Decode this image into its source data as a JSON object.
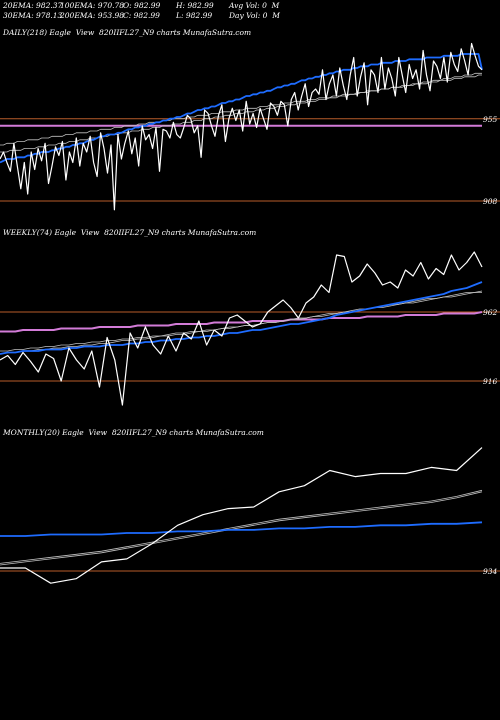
{
  "header": {
    "row1": [
      "20EMA: 982.37",
      "100EMA: 970.78",
      "O: 982.99",
      "H: 982.99",
      "Avg Vol: 0  M"
    ],
    "row2": [
      "30EMA: 978.13",
      "200EMA: 953.98",
      "C: 982.99",
      "L: 982.99",
      "Day Vol: 0  M"
    ]
  },
  "colors": {
    "background": "#000000",
    "price": "#ffffff",
    "ema_fast": "#1e6cff",
    "ema_slow": "#c0c0c0",
    "support": "#d27bd7",
    "level": "#b85c2a"
  },
  "chart_data": [
    {
      "type": "line",
      "title": "DAILY(218) Eagle  View  820IIFL27_N9 charts MunafaSutra.com",
      "yticks": [
        {
          "label": "955",
          "value": 955
        },
        {
          "label": "908",
          "value": 908
        }
      ],
      "ylim": [
        900,
        1000
      ],
      "price": [
        932,
        936,
        930,
        925,
        941,
        928,
        915,
        930,
        912,
        936,
        926,
        938,
        931,
        941,
        918,
        928,
        939,
        934,
        942,
        920,
        936,
        930,
        944,
        928,
        941,
        936,
        945,
        930,
        922,
        947,
        938,
        924,
        940,
        903,
        946,
        932,
        941,
        948,
        935,
        944,
        928,
        951,
        943,
        946,
        938,
        950,
        925,
        949,
        948,
        944,
        953,
        946,
        944,
        950,
        957,
        955,
        947,
        951,
        933,
        960,
        958,
        951,
        945,
        957,
        963,
        942,
        955,
        961,
        954,
        960,
        948,
        965,
        952,
        958,
        950,
        961,
        955,
        949,
        964,
        962,
        957,
        965,
        963,
        951,
        966,
        970,
        960,
        968,
        975,
        962,
        970,
        972,
        969,
        983,
        966,
        975,
        980,
        968,
        984,
        974,
        966,
        980,
        990,
        968,
        979,
        987,
        963,
        983,
        980,
        970,
        990,
        972,
        984,
        978,
        968,
        990,
        980,
        970,
        986,
        978,
        983,
        972,
        994,
        980,
        971,
        988,
        985,
        978,
        990,
        976,
        993,
        986,
        982,
        995,
        988,
        980,
        998,
        991,
        985,
        983
      ],
      "ema_fast": [
        930,
        931,
        932,
        932,
        932,
        933,
        933,
        933,
        934,
        934,
        935,
        935,
        936,
        936,
        936,
        937,
        937,
        938,
        938,
        939,
        939,
        940,
        940,
        941,
        941,
        942,
        943,
        943,
        944,
        945,
        945,
        946,
        946,
        946,
        947,
        947,
        948,
        949,
        949,
        950,
        950,
        951,
        951,
        952,
        952,
        953,
        953,
        954,
        954,
        955,
        955,
        956,
        956,
        957,
        958,
        958,
        959,
        960,
        960,
        961,
        961,
        962,
        962,
        963,
        964,
        964,
        965,
        965,
        966,
        966,
        967,
        968,
        968,
        969,
        969,
        970,
        970,
        971,
        971,
        972,
        973,
        973,
        974,
        974,
        975,
        975,
        976,
        977,
        977,
        978,
        978,
        979,
        979,
        980,
        980,
        981,
        981,
        982,
        982,
        983,
        983,
        983,
        984,
        984,
        985,
        985,
        985,
        986,
        986,
        986,
        987,
        987,
        987,
        987,
        988,
        988,
        988,
        988,
        989,
        989,
        989,
        989,
        989,
        990,
        990,
        990,
        990,
        990,
        991,
        991,
        991,
        991,
        991,
        992,
        992,
        992,
        992,
        992,
        992,
        983
      ],
      "ema_slow": [
        936,
        936,
        936,
        937,
        937,
        937,
        937,
        938,
        938,
        938,
        938,
        939,
        939,
        939,
        940,
        940,
        940,
        941,
        941,
        941,
        942,
        942,
        942,
        943,
        943,
        943,
        944,
        944,
        944,
        945,
        945,
        945,
        946,
        946,
        946,
        947,
        947,
        947,
        948,
        948,
        948,
        949,
        949,
        949,
        950,
        950,
        950,
        951,
        951,
        951,
        952,
        952,
        952,
        953,
        953,
        953,
        954,
        954,
        954,
        955,
        955,
        955,
        956,
        956,
        956,
        957,
        957,
        957,
        958,
        958,
        958,
        959,
        959,
        959,
        960,
        960,
        960,
        961,
        961,
        961,
        962,
        962,
        962,
        963,
        963,
        963,
        964,
        964,
        964,
        965,
        965,
        965,
        966,
        966,
        966,
        967,
        967,
        967,
        968,
        968,
        968,
        969,
        969,
        969,
        970,
        970,
        970,
        971,
        971,
        971,
        972,
        972,
        972,
        973,
        973,
        973,
        974,
        974,
        974,
        975,
        975,
        975,
        976,
        976,
        976,
        977,
        977,
        977,
        978,
        978,
        978,
        979,
        979,
        979,
        980,
        980,
        980,
        981,
        981,
        981
      ],
      "ema_slower": [
        940,
        940,
        941,
        941,
        941,
        942,
        942,
        942,
        943,
        943,
        943,
        943,
        944,
        944,
        944,
        945,
        945,
        945,
        945,
        946,
        946,
        946,
        947,
        947,
        947,
        947,
        948,
        948,
        948,
        949,
        949,
        949,
        949,
        950,
        950,
        950,
        951,
        951,
        951,
        951,
        952,
        952,
        952,
        953,
        953,
        953,
        953,
        954,
        954,
        954,
        955,
        955,
        955,
        955,
        956,
        956,
        956,
        957,
        957,
        957,
        957,
        958,
        958,
        958,
        959,
        959,
        959,
        959,
        960,
        960,
        960,
        961,
        961,
        961,
        961,
        962,
        962,
        962,
        963,
        963,
        963,
        963,
        964,
        964,
        964,
        965,
        965,
        965,
        965,
        966,
        966,
        966,
        967,
        967,
        967,
        967,
        968,
        968,
        968,
        969,
        969,
        969,
        969,
        970,
        970,
        970,
        971,
        971,
        971,
        971,
        972,
        972,
        972,
        973,
        973,
        973,
        973,
        974,
        974,
        974,
        975,
        975,
        975,
        975,
        976,
        976,
        976,
        977,
        977,
        977,
        977,
        978,
        978,
        978,
        979,
        979,
        979,
        979,
        980,
        980
      ],
      "support_line": [
        951,
        951,
        951,
        951,
        951,
        951,
        951,
        951,
        951,
        951,
        951,
        951,
        951,
        951,
        951,
        951,
        951,
        951,
        951,
        951,
        951,
        951,
        951,
        951,
        951,
        951,
        951,
        951,
        951,
        951,
        951,
        951,
        951,
        951,
        951,
        951,
        951,
        951,
        951,
        951,
        951,
        951,
        951,
        951,
        951,
        951,
        951,
        951,
        951,
        951,
        951,
        951,
        951,
        951,
        951,
        951,
        951,
        951,
        951,
        951,
        951,
        951,
        951,
        951,
        951,
        951,
        951,
        951,
        951,
        951,
        951,
        951,
        951,
        951,
        951,
        951,
        951,
        951,
        951,
        951,
        951,
        951,
        951,
        951,
        951,
        951,
        951,
        951,
        951,
        951,
        951,
        951,
        951,
        951,
        951,
        951,
        951,
        951,
        951,
        951,
        951,
        951,
        951,
        951,
        951,
        951,
        951,
        951,
        951,
        951,
        951,
        951,
        951,
        951,
        951,
        951,
        951,
        951,
        951,
        951,
        951,
        951,
        951,
        951,
        951,
        951,
        951,
        951,
        951,
        951,
        951,
        951,
        951,
        951,
        951,
        951,
        951,
        951,
        951,
        951
      ],
      "level_lines": [
        955,
        908
      ]
    },
    {
      "type": "line",
      "title": "WEEKLY(74) Eagle  View  820IIFL27_N9 charts MunafaSutra.com",
      "yticks": [
        {
          "label": "962",
          "value": 962
        },
        {
          "label": "916",
          "value": 916
        }
      ],
      "ylim": [
        900,
        1010
      ],
      "price": [
        930,
        933,
        927,
        935,
        929,
        922,
        934,
        931,
        916,
        938,
        930,
        924,
        936,
        912,
        945,
        930,
        900,
        948,
        938,
        952,
        940,
        934,
        946,
        936,
        948,
        944,
        956,
        940,
        950,
        946,
        958,
        960,
        956,
        952,
        954,
        962,
        966,
        970,
        965,
        958,
        968,
        972,
        980,
        975,
        1000,
        999,
        982,
        986,
        994,
        988,
        980,
        982,
        978,
        990,
        986,
        995,
        984,
        991,
        987,
        1000,
        990,
        995,
        1002,
        992
      ],
      "ema_fast": [
        934,
        935,
        935,
        936,
        936,
        936,
        937,
        937,
        937,
        938,
        938,
        939,
        939,
        939,
        940,
        940,
        940,
        941,
        941,
        942,
        942,
        943,
        943,
        944,
        944,
        945,
        945,
        946,
        946,
        947,
        948,
        948,
        949,
        950,
        950,
        951,
        952,
        953,
        954,
        954,
        955,
        956,
        957,
        958,
        960,
        961,
        962,
        963,
        964,
        965,
        966,
        967,
        968,
        969,
        970,
        971,
        972,
        973,
        974,
        976,
        977,
        978,
        980,
        982
      ],
      "ema_slow": [
        936,
        936,
        937,
        937,
        938,
        938,
        939,
        939,
        940,
        940,
        941,
        941,
        942,
        942,
        943,
        943,
        944,
        944,
        945,
        945,
        946,
        946,
        947,
        948,
        948,
        949,
        949,
        950,
        950,
        951,
        952,
        952,
        953,
        953,
        954,
        955,
        955,
        956,
        957,
        957,
        958,
        959,
        959,
        960,
        961,
        962,
        962,
        963,
        964,
        965,
        965,
        966,
        967,
        968,
        968,
        969,
        970,
        971,
        972,
        972,
        973,
        974,
        975,
        975
      ],
      "ema_slower": [
        934,
        935,
        935,
        936,
        936,
        937,
        937,
        938,
        938,
        939,
        939,
        940,
        940,
        941,
        941,
        942,
        943,
        943,
        944,
        944,
        945,
        946,
        946,
        947,
        947,
        948,
        949,
        949,
        950,
        951,
        951,
        952,
        953,
        953,
        954,
        955,
        955,
        956,
        957,
        958,
        958,
        959,
        960,
        961,
        961,
        962,
        963,
        964,
        964,
        965,
        966,
        967,
        967,
        968,
        969,
        970,
        971,
        971,
        972,
        973,
        974,
        975,
        975,
        976
      ],
      "support_line": [
        949,
        949,
        949,
        950,
        950,
        950,
        950,
        950,
        951,
        951,
        951,
        951,
        951,
        952,
        952,
        952,
        952,
        952,
        953,
        953,
        953,
        953,
        953,
        954,
        954,
        954,
        954,
        954,
        955,
        955,
        955,
        955,
        955,
        956,
        956,
        956,
        956,
        956,
        957,
        957,
        957,
        957,
        957,
        958,
        958,
        958,
        958,
        958,
        959,
        959,
        959,
        959,
        959,
        960,
        960,
        960,
        960,
        960,
        961,
        961,
        961,
        961,
        961,
        962
      ],
      "level_lines": [
        962,
        916
      ]
    },
    {
      "type": "line",
      "title": "MONTHLY(20) Eagle  View  820IIFL27_N9 charts MunafaSutra.com",
      "yticks": [
        {
          "label": "934",
          "value": 934
        }
      ],
      "ylim": [
        915,
        1020
      ],
      "price": [
        936,
        936,
        926,
        929,
        940,
        942,
        952,
        964,
        971,
        975,
        976,
        986,
        990,
        1000,
        996,
        998,
        998,
        1002,
        1000,
        1015
      ],
      "ema_fast": [
        957,
        957,
        958,
        958,
        958,
        959,
        959,
        960,
        960,
        961,
        961,
        962,
        962,
        963,
        963,
        964,
        964,
        965,
        965,
        966
      ],
      "ema_slow": [
        939,
        941,
        943,
        945,
        947,
        950,
        953,
        956,
        959,
        962,
        965,
        968,
        970,
        972,
        974,
        976,
        978,
        980,
        983,
        987
      ],
      "ema_slower": [
        938,
        940,
        942,
        944,
        946,
        949,
        952,
        955,
        958,
        961,
        964,
        967,
        969,
        971,
        973,
        975,
        977,
        979,
        982,
        986
      ],
      "level_lines": [
        934
      ]
    }
  ]
}
